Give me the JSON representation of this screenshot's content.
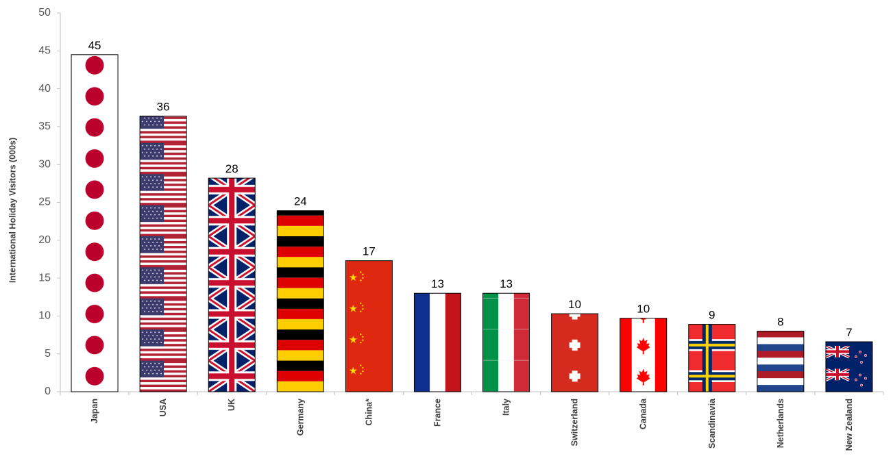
{
  "chart_data": {
    "type": "bar",
    "ylabel": "International Holiday Visitors (000s)",
    "xlabel": "",
    "ylim": [
      0,
      50
    ],
    "yticks": [
      0,
      5,
      10,
      15,
      20,
      25,
      30,
      35,
      40,
      45,
      50
    ],
    "grid": false,
    "legend": "none",
    "categories": [
      "Japan",
      "USA",
      "UK",
      "Germany",
      "China*",
      "France",
      "Italy",
      "Switzerland",
      "Canada",
      "Scandinavia",
      "Netherlands",
      "New Zealand"
    ],
    "values": [
      44.5,
      36.4,
      28.2,
      23.9,
      17.3,
      13.0,
      13.0,
      10.3,
      9.7,
      8.9,
      8.0,
      6.6
    ],
    "data_labels": [
      "45",
      "36",
      "28",
      "24",
      "17",
      "13",
      "13",
      "10",
      "10",
      "9",
      "8",
      "7"
    ],
    "bar_fill": [
      "flag-japan",
      "flag-usa",
      "flag-uk",
      "flag-germany",
      "flag-china",
      "flag-france",
      "flag-italy",
      "flag-switzerland",
      "flag-canada",
      "flag-scandinavia",
      "flag-netherlands",
      "flag-new-zealand"
    ]
  }
}
